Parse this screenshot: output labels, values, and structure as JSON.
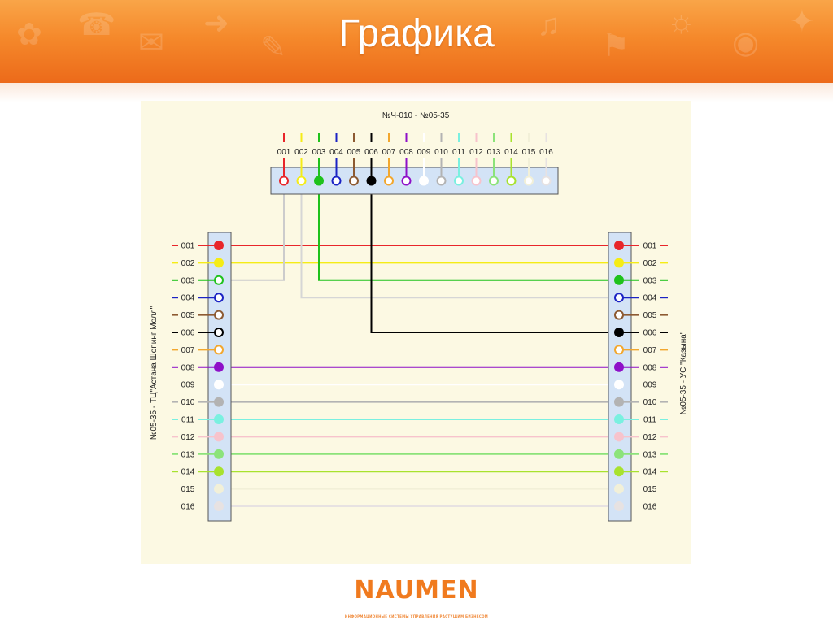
{
  "slide": {
    "title": "Графика"
  },
  "diagram": {
    "title": "№Ч-010 - №05-35",
    "left_unit_label": "№05-35 - ТЦ\"Астана Шопинг Молл\"",
    "right_unit_label": "№05-35 - УС \"Казына\"",
    "fibers": [
      {
        "num": "001",
        "color": "#e8262b",
        "filled": true,
        "left": true,
        "right": true
      },
      {
        "num": "002",
        "color": "#f5ec16",
        "filled": true,
        "left": true,
        "right": true
      },
      {
        "num": "003",
        "color": "#1fc21c",
        "filled": true,
        "left": true,
        "right": true
      },
      {
        "num": "004",
        "color": "#1b23c4",
        "filled": false,
        "left": true,
        "right": true
      },
      {
        "num": "005",
        "color": "#8d5a32",
        "filled": false,
        "left": true,
        "right": true
      },
      {
        "num": "006",
        "color": "#000000",
        "filled": true,
        "left": true,
        "right": true
      },
      {
        "num": "007",
        "color": "#f2a72e",
        "filled": false,
        "left": true,
        "right": true
      },
      {
        "num": "008",
        "color": "#8e10c8",
        "filled": true,
        "left": true,
        "right": true
      },
      {
        "num": "009",
        "color": "#ffffff",
        "filled": false,
        "left": false,
        "right": false
      },
      {
        "num": "010",
        "color": "#b3b3b3",
        "filled": false,
        "left": true,
        "right": true
      },
      {
        "num": "011",
        "color": "#7af0e0",
        "filled": false,
        "left": true,
        "right": true
      },
      {
        "num": "012",
        "color": "#f7c3cc",
        "filled": false,
        "left": true,
        "right": true
      },
      {
        "num": "013",
        "color": "#8ce37a",
        "filled": false,
        "left": true,
        "right": true
      },
      {
        "num": "014",
        "color": "#a8e22e",
        "filled": false,
        "left": true,
        "right": true
      },
      {
        "num": "015",
        "color": "#f2f0d8",
        "filled": false,
        "left": false,
        "right": false
      },
      {
        "num": "016",
        "color": "#e7e2e2",
        "filled": false,
        "left": false,
        "right": false
      }
    ],
    "straight_links": [
      "001",
      "002",
      "008",
      "009",
      "010",
      "011",
      "012",
      "013",
      "014",
      "015",
      "016"
    ],
    "routed_links": [
      {
        "top": "001",
        "side": "left",
        "row": "003",
        "color": "#cccccc"
      },
      {
        "top": "002",
        "side": "right",
        "row": "004",
        "color": "#d6d6d6"
      },
      {
        "top": "003",
        "side": "right",
        "row": "003",
        "color": "#1fc21c"
      },
      {
        "top": "006",
        "side": "right",
        "row": "006",
        "color": "#000000"
      }
    ],
    "left_filled": [
      "001",
      "002",
      "008",
      "009",
      "010",
      "011",
      "012",
      "013",
      "014",
      "015",
      "016"
    ],
    "right_filled": [
      "001",
      "002",
      "003",
      "006",
      "008",
      "009",
      "010",
      "011",
      "012",
      "013",
      "014",
      "015",
      "016"
    ],
    "top_filled": [
      "003",
      "006"
    ]
  },
  "footer": {
    "logo_text": "NAUMEN",
    "logo_tagline": "ИНФОРМАЦИОННЫЕ СИСТЕМЫ УПРАВЛЕНИЯ РАСТУЩИМ БИЗНЕСОМ"
  }
}
